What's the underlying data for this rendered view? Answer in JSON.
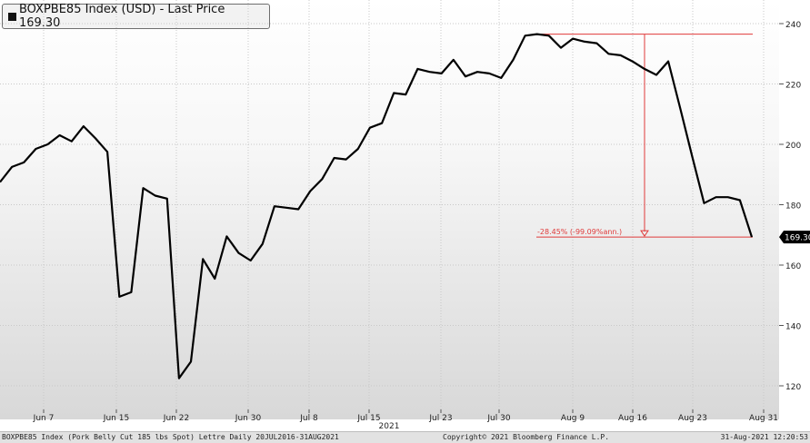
{
  "legend": {
    "label": "BOXPBE85 Index (USD) - Last Price 169.30"
  },
  "footer": {
    "left": "BOXPBE85 Index (Pork Belly Cut 185 lbs Spot) Lettre  Daily 20JUL2016-31AUG2021",
    "center": "Copyright© 2021 Bloomberg Finance L.P.",
    "right": "31-Aug-2021 12:20:53"
  },
  "colors": {
    "line": "#000000",
    "annotation": "#e03a3a",
    "last_price_bg": "#000000",
    "last_price_text": "#ffffff"
  },
  "chart_data": {
    "type": "line",
    "title": "BOXPBE85 Index (USD) - Last Price 169.30",
    "xlabel": "",
    "ylabel": "",
    "ylim": [
      113,
      246
    ],
    "yticks": [
      120,
      140,
      160,
      180,
      200,
      220,
      240
    ],
    "x_tick_labels": [
      "Jun 7",
      "Jun 15",
      "Jun 22",
      "Jun 30",
      "Jul 8",
      "Jul 15",
      "Jul 23",
      "Jul 30",
      "Aug 9",
      "Aug 16",
      "Aug 23",
      "Aug 31"
    ],
    "year_label": "2021",
    "last_price": "169.30",
    "annotation": "-28.45% (-99.09%ann.)",
    "grid": true,
    "series": [
      {
        "values": [
          187.5,
          192.5,
          194,
          198.5,
          200,
          203,
          201,
          206,
          202,
          197.5,
          149.5,
          151,
          185.5,
          183,
          182,
          122.5,
          128,
          162,
          155.5,
          169.5,
          164,
          161.5,
          167,
          179.5,
          179,
          178.5,
          184.5,
          188.5,
          195.5,
          195,
          198.5,
          205.5,
          207,
          217,
          216.5,
          225,
          224,
          223.5,
          228,
          222.5,
          224,
          223.5,
          222,
          228,
          236,
          236.5,
          236,
          232,
          235,
          234,
          233.5,
          230,
          229.5,
          227.5,
          225,
          223,
          227.5,
          212,
          196,
          180.5,
          182.5,
          182.5,
          181.5,
          169.3
        ]
      }
    ]
  }
}
